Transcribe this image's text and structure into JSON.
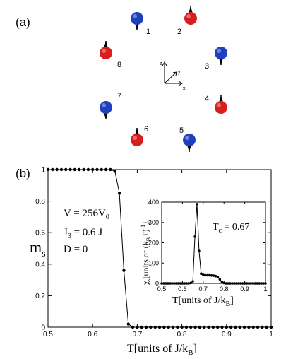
{
  "panel_a": {
    "label": "(a)",
    "axes_labels": {
      "z": "z",
      "y": "y",
      "x": "x"
    },
    "sites": [
      {
        "id": "1",
        "color": "#1f3fbf",
        "spin": "down"
      },
      {
        "id": "2",
        "color": "#d81e1e",
        "spin": "up"
      },
      {
        "id": "3",
        "color": "#1f3fbf",
        "spin": "down"
      },
      {
        "id": "4",
        "color": "#d81e1e",
        "spin": "up"
      },
      {
        "id": "5",
        "color": "#1f3fbf",
        "spin": "down"
      },
      {
        "id": "6",
        "color": "#d81e1e",
        "spin": "up"
      },
      {
        "id": "7",
        "color": "#1f3fbf",
        "spin": "down"
      },
      {
        "id": "8",
        "color": "#d81e1e",
        "spin": "up"
      }
    ]
  },
  "panel_b": {
    "label": "(b)",
    "annotation_lines": [
      {
        "main": "V = 256V",
        "sub": "0"
      },
      {
        "main": "J",
        "sub": "3",
        "rest": " = 0.6 J"
      },
      {
        "main": "D = 0"
      }
    ],
    "tc_label": {
      "main": "T",
      "sub": "c",
      "rest": " = 0.67"
    }
  },
  "chart_data": [
    {
      "type": "line",
      "ylabel": {
        "main": "m",
        "sub": "s"
      },
      "xlabel": {
        "main": "T[units of J/k",
        "sub": "B",
        "rest": "]"
      },
      "xlim": [
        0.5,
        1.0
      ],
      "ylim": [
        0,
        1.0
      ],
      "x_ticks": [
        "0.5",
        "0.6",
        "0.7",
        "0.8",
        "0.9",
        "1"
      ],
      "y_ticks": [
        "0",
        "0.2",
        "0.4",
        "0.6",
        "0.8",
        "1"
      ],
      "x": [
        0.5,
        0.51,
        0.52,
        0.53,
        0.54,
        0.55,
        0.56,
        0.57,
        0.58,
        0.59,
        0.6,
        0.61,
        0.62,
        0.63,
        0.64,
        0.65,
        0.66,
        0.67,
        0.68,
        0.69,
        0.7,
        0.71,
        0.72,
        0.73,
        0.74,
        0.75,
        0.76,
        0.77,
        0.78,
        0.79,
        0.8,
        0.81,
        0.82,
        0.83,
        0.84,
        0.85,
        0.86,
        0.87,
        0.88,
        0.89,
        0.9,
        0.91,
        0.92,
        0.93,
        0.94,
        0.95,
        0.96,
        0.97,
        0.98,
        0.99,
        1.0
      ],
      "y": [
        1.0,
        1.0,
        1.0,
        1.0,
        1.0,
        1.0,
        1.0,
        1.0,
        1.0,
        1.0,
        1.0,
        1.0,
        1.0,
        1.0,
        1.0,
        0.99,
        0.85,
        0.36,
        0.02,
        0.0,
        0.0,
        0.0,
        0.0,
        0.0,
        0.0,
        0.0,
        0.0,
        0.0,
        0.0,
        0.0,
        0.0,
        0.0,
        0.0,
        0.0,
        0.0,
        0.0,
        0.0,
        0.0,
        0.0,
        0.0,
        0.0,
        0.0,
        0.0,
        0.0,
        0.0,
        0.0,
        0.0,
        0.0,
        0.0,
        0.0,
        0.0
      ]
    },
    {
      "type": "line",
      "ylabel": {
        "main": "χ",
        "sub": "s",
        "rest": "[units of (k",
        "sub2": "B",
        "rest2": "T)",
        "sup": "-1",
        "rest3": "]"
      },
      "xlabel": {
        "main": "T[units of J/k",
        "sub": "B",
        "rest": "]"
      },
      "xlim": [
        0.5,
        1.0
      ],
      "ylim": [
        0,
        400
      ],
      "x_ticks": [
        "0.5",
        "0.6",
        "0.7",
        "0.8",
        "0.9",
        "1"
      ],
      "y_ticks": [
        "0",
        "100",
        "200",
        "300",
        "400"
      ],
      "x": [
        0.5,
        0.51,
        0.52,
        0.53,
        0.54,
        0.55,
        0.56,
        0.57,
        0.58,
        0.59,
        0.6,
        0.61,
        0.62,
        0.63,
        0.64,
        0.65,
        0.66,
        0.67,
        0.68,
        0.69,
        0.7,
        0.71,
        0.72,
        0.73,
        0.74,
        0.75,
        0.76,
        0.77,
        0.78,
        0.79,
        0.8,
        0.81,
        0.82,
        0.83,
        0.84,
        0.85,
        0.86,
        0.87,
        0.88,
        0.89,
        0.9,
        0.91,
        0.92,
        0.93,
        0.94,
        0.95,
        0.96,
        0.97,
        0.98,
        0.99,
        1.0
      ],
      "y": [
        0,
        0,
        0,
        0,
        0,
        0,
        0,
        0,
        0,
        0,
        0,
        0,
        0,
        0,
        2,
        10,
        230,
        390,
        160,
        48,
        42,
        40,
        40,
        40,
        39,
        38,
        36,
        32,
        20,
        8,
        2,
        0,
        0,
        0,
        0,
        0,
        0,
        0,
        0,
        0,
        0,
        0,
        0,
        0,
        0,
        0,
        0,
        0,
        0,
        0,
        0
      ]
    }
  ]
}
